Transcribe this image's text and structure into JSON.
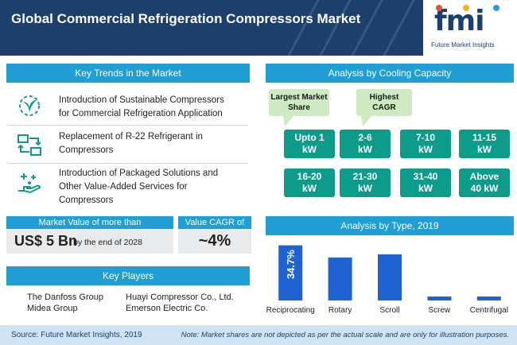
{
  "header": {
    "title": "Global Commercial Refrigeration Compressors Market"
  },
  "logo": {
    "mark": "fmi",
    "name": "Future Market Insights"
  },
  "trends": {
    "heading": "Key Trends in the Market",
    "items": [
      {
        "line1": "Introduction of Sustainable Compressors",
        "line2": "for Commercial Refrigeration Application",
        "line3": "",
        "icon": "plant-gear-icon"
      },
      {
        "line1": "Replacement of R-22 Refrigerant in",
        "line2": "Compressors",
        "line3": "",
        "icon": "swap-arrows-icon"
      },
      {
        "line1": "Introduction of Packaged Solutions and",
        "line2": "Other Value-Added Services for",
        "line3": "Compressors",
        "icon": "hand-sparkle-icon"
      }
    ]
  },
  "market_value": {
    "label": "Market Value of more than",
    "value": "US$ 5 Bn",
    "suffix": "by the end of 2028"
  },
  "cagr": {
    "label": "Value CAGR of",
    "value": "~4%"
  },
  "players": {
    "heading": "Key Players",
    "items": [
      "The Danfoss Group",
      "Huayi Compressor Co., Ltd.",
      "Midea Group",
      "Emerson Electric Co."
    ]
  },
  "capacity": {
    "heading": "Analysis by Cooling Capacity",
    "callout_largest_1": "Largest Market",
    "callout_largest_2": "Share",
    "callout_cagr_1": "Highest",
    "callout_cagr_2": "CAGR",
    "buttons": [
      {
        "l1": "Upto 1",
        "l2": "kW"
      },
      {
        "l1": "2-6",
        "l2": "kW"
      },
      {
        "l1": "7-10",
        "l2": "kW"
      },
      {
        "l1": "11-15",
        "l2": "kW"
      },
      {
        "l1": "16-20",
        "l2": "kW"
      },
      {
        "l1": "21-30",
        "l2": "kW"
      },
      {
        "l1": "31-40",
        "l2": "kW"
      },
      {
        "l1": "Above",
        "l2": "40 kW"
      }
    ]
  },
  "type_analysis": {
    "heading": "Analysis by Type, 2019"
  },
  "chart_data": {
    "type": "bar",
    "categories": [
      "Reciprocating",
      "Rotary",
      "Scroll",
      "Screw",
      "Centrifugal"
    ],
    "values": [
      34.7,
      27,
      29,
      2.5,
      2.5
    ],
    "data_labels": [
      "34.7%",
      "",
      "",
      "",
      ""
    ],
    "ylim": [
      0,
      36
    ],
    "grid": false,
    "bar_color": "#1f63d2"
  },
  "footer": {
    "source": "Source: Future Market Insights, 2019",
    "note": "Note: Market shares are not depicted as per the actual scale and are only for illustration purposes."
  },
  "colors": {
    "navy": "#1d3f6e",
    "blue": "#1f9fd4",
    "teal": "#0d9b8a",
    "green_callout": "#cdeac0"
  }
}
